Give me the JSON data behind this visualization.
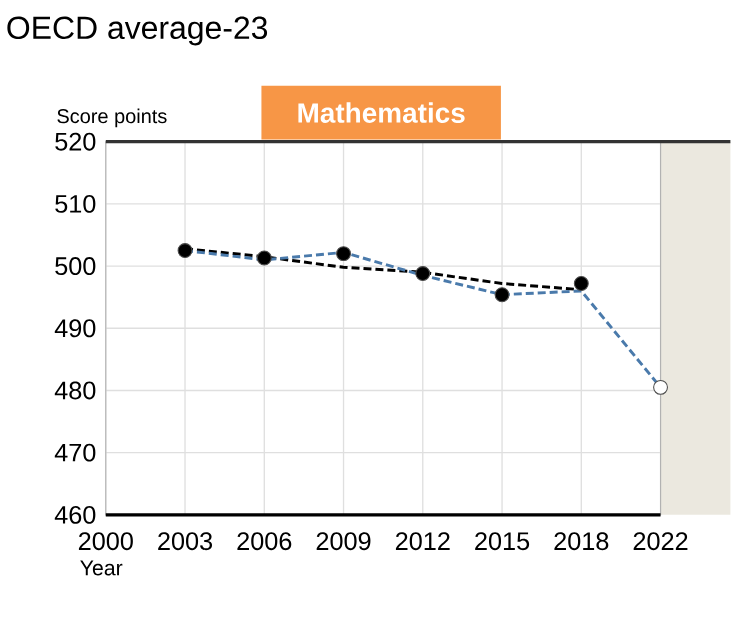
{
  "chart_data": {
    "type": "line",
    "title": "OECD average-23",
    "subtitle": "Mathematics",
    "ylabel": "Score points",
    "xlabel": "Year",
    "categories": [
      "2000",
      "2003",
      "2006",
      "2009",
      "2012",
      "2015",
      "2018",
      "2022"
    ],
    "series": [
      {
        "color": "#000000",
        "line_style": "dashed",
        "values": [
          null,
          502.8,
          501.5,
          499.8,
          499.0,
          497.2,
          496.2,
          null
        ]
      },
      {
        "color": "#4a7aab",
        "line_style": "dashed",
        "values": [
          null,
          502.5,
          501.0,
          502.2,
          498.5,
          495.4,
          496.0,
          480.5
        ]
      },
      {
        "type": "scatter",
        "marker": "circle",
        "colors": [
          null,
          "#000000",
          "#000000",
          "#000000",
          "#000000",
          "#000000",
          "#000000",
          "#ffffff"
        ],
        "values": [
          null,
          502.5,
          501.3,
          502.0,
          498.8,
          495.4,
          497.2,
          480.5
        ]
      }
    ],
    "ylim": [
      460,
      520
    ],
    "yticks": [
      460,
      470,
      480,
      490,
      500,
      510,
      520
    ],
    "grid": true
  }
}
